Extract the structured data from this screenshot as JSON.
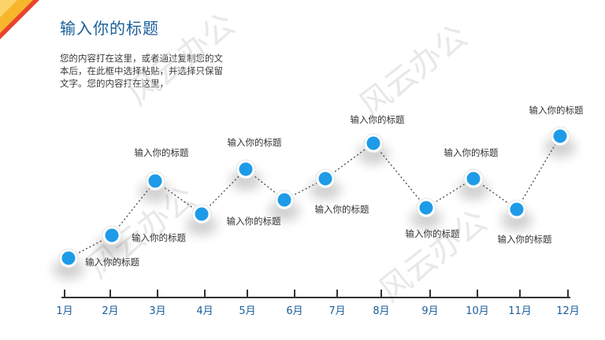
{
  "title": "输入你的标题",
  "description": "您的内容打在这里，或者通过复制您的文本后，在此框中选择粘贴，并选择只保留文字。您的内容打在这里，",
  "watermark": "风云办公",
  "colors": {
    "title": "#1a5e9a",
    "point_fill": "#1e9be8",
    "point_ring": "#ffffff",
    "connector": "#444444",
    "axis": "#333333",
    "month_text": "#1a5e9a",
    "corner_orange": "#f7b52c",
    "corner_red": "#e8432a"
  },
  "points": [
    {
      "month": "1月",
      "label": "输入你的标题"
    },
    {
      "month": "2月",
      "label": "输入你的标题"
    },
    {
      "month": "3月",
      "label": "输入你的标题"
    },
    {
      "month": "4月",
      "label": "输入你的标题"
    },
    {
      "month": "5月",
      "label": "输入你的标题"
    },
    {
      "month": "6月",
      "label": "输入你的标题"
    },
    {
      "month": "7月",
      "label": "输入你的标题"
    },
    {
      "month": "8月",
      "label": "输入你的标题"
    },
    {
      "month": "9月",
      "label": "输入你的标题"
    },
    {
      "month": "10月",
      "label": "输入你的标题"
    },
    {
      "month": "11月",
      "label": "输入你的标题"
    },
    {
      "month": "12月",
      "label": "输入你的标题"
    }
  ]
}
